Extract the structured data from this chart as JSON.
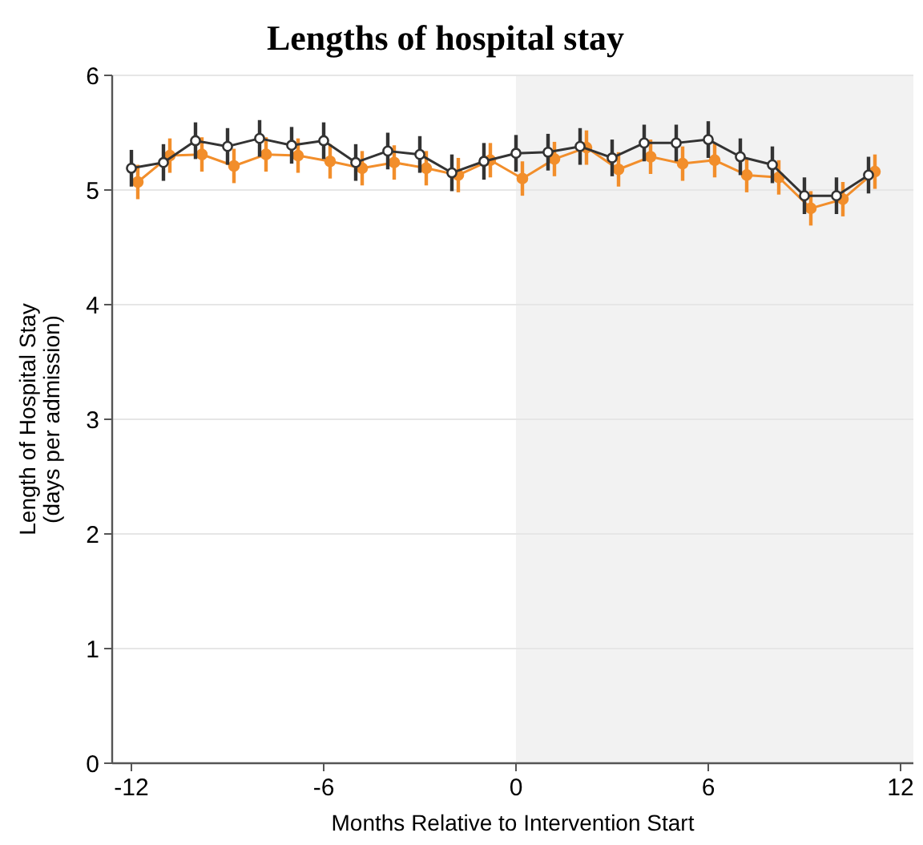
{
  "chart_data": {
    "type": "line",
    "title": "Lengths of hospital stay",
    "xlabel": "Months Relative to Intervention Start",
    "ylabel": "Length of Hospital Stay\n(days per admission)",
    "xlim": [
      -12.6,
      12.4
    ],
    "xticks": [
      -12,
      -6,
      0,
      6,
      12
    ],
    "ylim": [
      0,
      6
    ],
    "yticks": [
      0,
      1,
      2,
      3,
      4,
      5,
      6
    ],
    "grid": "y",
    "marker": "circle",
    "line_style": "solid",
    "bands": [
      {
        "axis": "x",
        "from": 0,
        "to": 12.4,
        "color": "#f2f2f2"
      }
    ],
    "series": [
      {
        "color": "#333333",
        "x": [
          -12,
          -11,
          -10,
          -9,
          -8,
          -7,
          -6,
          -5,
          -4,
          -3,
          -2,
          -1,
          0,
          1,
          2,
          3,
          4,
          5,
          6,
          7,
          8,
          9,
          10,
          11
        ],
        "values": [
          5.19,
          5.24,
          5.43,
          5.38,
          5.45,
          5.39,
          5.43,
          5.24,
          5.34,
          5.31,
          5.15,
          5.25,
          5.32,
          5.33,
          5.38,
          5.28,
          5.41,
          5.41,
          5.44,
          5.29,
          5.22,
          4.95,
          4.95,
          5.13
        ],
        "errors": [
          0.16,
          0.16,
          0.16,
          0.16,
          0.16,
          0.16,
          0.16,
          0.16,
          0.16,
          0.16,
          0.16,
          0.16,
          0.16,
          0.16,
          0.16,
          0.16,
          0.16,
          0.16,
          0.16,
          0.16,
          0.16,
          0.16,
          0.16,
          0.16
        ]
      },
      {
        "color": "#f28e2b",
        "x": [
          -11.8,
          -10.8,
          -9.8,
          -8.8,
          -7.8,
          -6.8,
          -5.8,
          -4.8,
          -3.8,
          -2.8,
          -1.8,
          -0.8,
          0.2,
          1.2,
          2.2,
          3.2,
          4.2,
          5.2,
          6.2,
          7.2,
          8.2,
          9.2,
          10.2,
          11.2
        ],
        "values": [
          5.07,
          5.3,
          5.31,
          5.21,
          5.31,
          5.3,
          5.25,
          5.19,
          5.24,
          5.19,
          5.13,
          5.26,
          5.1,
          5.27,
          5.37,
          5.18,
          5.29,
          5.23,
          5.26,
          5.13,
          5.11,
          4.84,
          4.92,
          5.16
        ],
        "errors": [
          0.15,
          0.15,
          0.15,
          0.15,
          0.15,
          0.15,
          0.15,
          0.15,
          0.15,
          0.15,
          0.15,
          0.15,
          0.15,
          0.15,
          0.15,
          0.15,
          0.15,
          0.15,
          0.15,
          0.15,
          0.15,
          0.15,
          0.15,
          0.15
        ]
      }
    ]
  }
}
